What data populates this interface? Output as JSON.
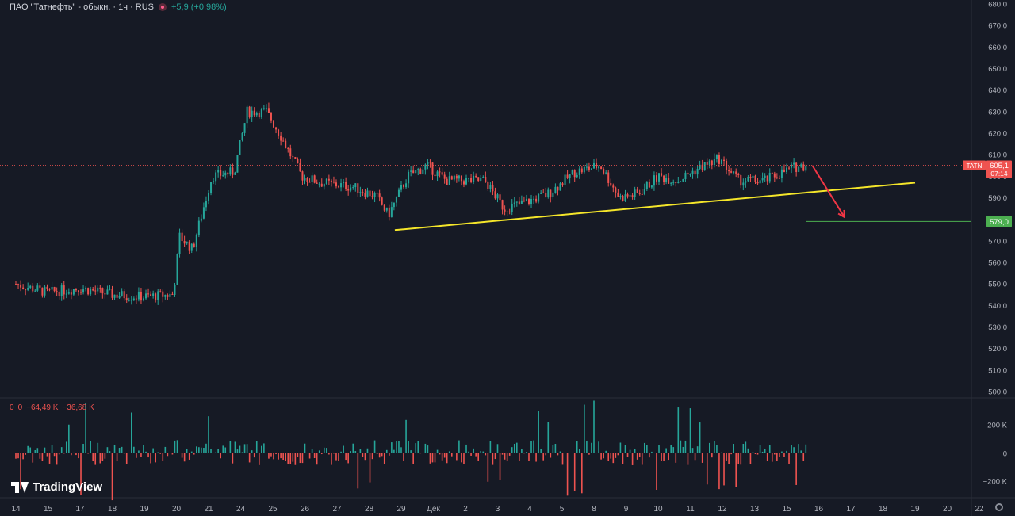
{
  "header": {
    "title": "ПАО \"Татнефть\" - обыкн. · 1ч · RUS",
    "change": "+5,9 (+0,98%)"
  },
  "volume_header": {
    "v1": "0",
    "v2": "0",
    "v3": "−64,49 K",
    "v4": "−36,68 K"
  },
  "logo_text": "TradingView",
  "colors": {
    "background": "#161a25",
    "up": "#26a69a",
    "down": "#ef5350",
    "trendline": "#f5e62a",
    "arrow": "#f23645",
    "target": "#4caf50",
    "axis_text": "#b2b5be"
  },
  "icons": {
    "settings": "gear-icon",
    "alert": "dot-icon"
  },
  "chart_data": {
    "type": "candlestick",
    "symbol": "TATN",
    "interval": "1ч",
    "y_ticks": [
      "680,0",
      "670,0",
      "660,0",
      "650,0",
      "640,0",
      "630,0",
      "620,0",
      "610,0",
      "600,0",
      "590,0",
      "580,0",
      "570,0",
      "560,0",
      "550,0",
      "540,0",
      "530,0",
      "520,0",
      "510,0",
      "500,0"
    ],
    "y_range": [
      500,
      680
    ],
    "x_ticks": [
      "14",
      "15",
      "17",
      "18",
      "19",
      "20",
      "21",
      "24",
      "25",
      "26",
      "27",
      "28",
      "29",
      "Дек",
      "2",
      "3",
      "4",
      "5",
      "8",
      "9",
      "10",
      "11",
      "12",
      "13",
      "15",
      "16",
      "17",
      "18",
      "19",
      "20",
      "22"
    ],
    "price_path": [
      [
        0,
        550
      ],
      [
        1,
        546
      ],
      [
        2,
        548
      ],
      [
        3,
        545
      ],
      [
        4,
        544
      ],
      [
        4.9,
        545
      ],
      [
        5.1,
        572
      ],
      [
        5.5,
        566
      ],
      [
        6.1,
        600
      ],
      [
        6.8,
        602
      ],
      [
        7.2,
        630
      ],
      [
        7.8,
        630
      ],
      [
        8.2,
        620
      ],
      [
        8.9,
        600
      ],
      [
        9.5,
        597
      ],
      [
        10.5,
        595
      ],
      [
        11.2,
        591
      ],
      [
        11.6,
        582
      ],
      [
        12.2,
        600
      ],
      [
        12.8,
        605
      ],
      [
        13.4,
        598
      ],
      [
        14.6,
        598
      ],
      [
        15.2,
        585
      ],
      [
        15.9,
        588
      ],
      [
        16.6,
        592
      ],
      [
        17.4,
        602
      ],
      [
        18.2,
        605
      ],
      [
        18.8,
        590
      ],
      [
        19.4,
        592
      ],
      [
        20.0,
        600
      ],
      [
        20.6,
        598
      ],
      [
        21.3,
        604
      ],
      [
        21.9,
        608
      ],
      [
        22.5,
        598
      ],
      [
        23.3,
        598
      ],
      [
        24.2,
        604
      ],
      [
        24.6,
        605.1
      ]
    ],
    "trendline": {
      "x": [
        11.8,
        28
      ],
      "y": [
        575,
        597
      ]
    },
    "last_price": "605,1",
    "last_price_timer": "07:14",
    "symbol_label": "TATN",
    "target_price": "579,0",
    "target_value": 579.0,
    "forecast_arrow": {
      "from": [
        24.8,
        605
      ],
      "to": [
        25.8,
        581
      ]
    },
    "volume": {
      "y_ticks": [
        "200 K",
        "0",
        "−200 K"
      ],
      "y_range": [
        -260,
        260
      ]
    }
  }
}
